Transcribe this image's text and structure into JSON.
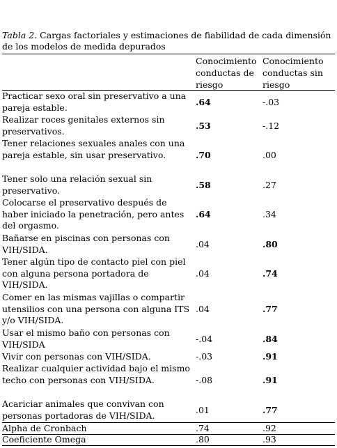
{
  "caption": {
    "label": "Tabla 2.",
    "text": " Cargas factoriales y estimaciones de fiabilidad de cada dimensión de los modelos de medida depurados"
  },
  "columns": [
    "Conocimiento conductas de riesgo",
    "Conocimiento conductas sin riesgo"
  ],
  "rows": [
    {
      "item": "Practicar sexo oral sin preservativo a una pareja estable.",
      "c1": ".64",
      "c2": "-.03"
    },
    {
      "item": "Realizar roces genitales externos sin preservativos.",
      "c1": ".53",
      "c2": "-.12"
    },
    {
      "item": "Tener relaciones sexuales anales con una pareja estable, sin usar preservativo.",
      "c1": ".70",
      "c2": ".00"
    },
    {
      "item": "Tener solo una relación sexual sin preservativo.",
      "c1": ".58",
      "c2": ".27"
    },
    {
      "item": "Colocarse el preservativo después de haber iniciado la penetración, pero antes del orgasmo.",
      "c1": ".64",
      "c2": ".34"
    },
    {
      "item": "Bañarse en piscinas con personas con VIH/SIDA.",
      "c1": ".04",
      "c2": ".80"
    },
    {
      "item": "Tener algún tipo de contacto piel con piel con alguna persona portadora de VIH/SIDA.",
      "c1": ".04",
      "c2": ".74"
    },
    {
      "item": "Comer en las mismas vajillas o compartir utensilios con una persona con alguna ITS y/o VIH/SIDA.",
      "c1": ".04",
      "c2": ".77"
    },
    {
      "item": "Usar el mismo baño con personas con VIH/SIDA",
      "c1": "-.04",
      "c2": ".84"
    },
    {
      "item": "Vivir con personas con VIH/SIDA.",
      "c1": "-.03",
      "c2": ".91"
    },
    {
      "item": "Realizar cualquier actividad bajo el mismo techo con personas con VIH/SIDA.",
      "c1": "-.08",
      "c2": ".91"
    },
    {
      "item": "Acariciar animales que convivan con personas portadoras de VIH/SIDA.",
      "c1": ".01",
      "c2": ".77"
    },
    {
      "item": "Alpha de Cronbach",
      "c1": ".74",
      "c2": ".92"
    },
    {
      "item": "Coeficiente Omega",
      "c1": ".80",
      "c2": ".93"
    }
  ]
}
